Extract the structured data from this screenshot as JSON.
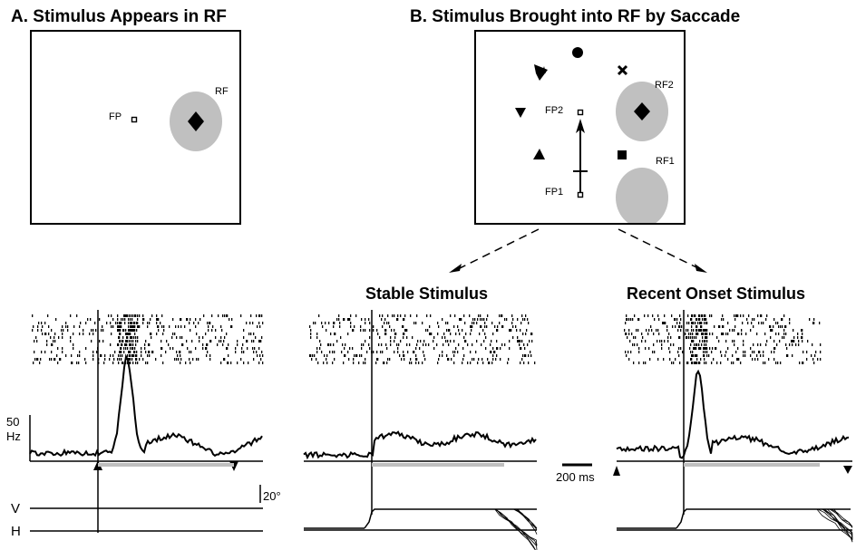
{
  "panel_a": {
    "title": "A. Stimulus Appears in RF",
    "fp_label": "FP",
    "rf_label": "RF"
  },
  "panel_b": {
    "title": "B. Stimulus Brought into RF by Saccade",
    "fp1_label": "FP1",
    "fp2_label": "FP2",
    "rf1_label": "RF1",
    "rf2_label": "RF2",
    "stable_title": "Stable Stimulus",
    "recent_title": "Recent Onset Stimulus"
  },
  "scale": {
    "rate_value": "50",
    "rate_unit": "Hz",
    "time_bar": "200 ms",
    "position_bar": "20°",
    "vertical_label": "V",
    "horizontal_label": "H"
  },
  "colors": {
    "rf_fill": "#c0c0c0",
    "stimulus_bar": "#bfbfbf",
    "ink": "#000000"
  },
  "icons": [
    "fixation-point-icon",
    "diamond-stimulus-icon",
    "saccade-arrow-icon",
    "event-marker-triangle-icon"
  ]
}
